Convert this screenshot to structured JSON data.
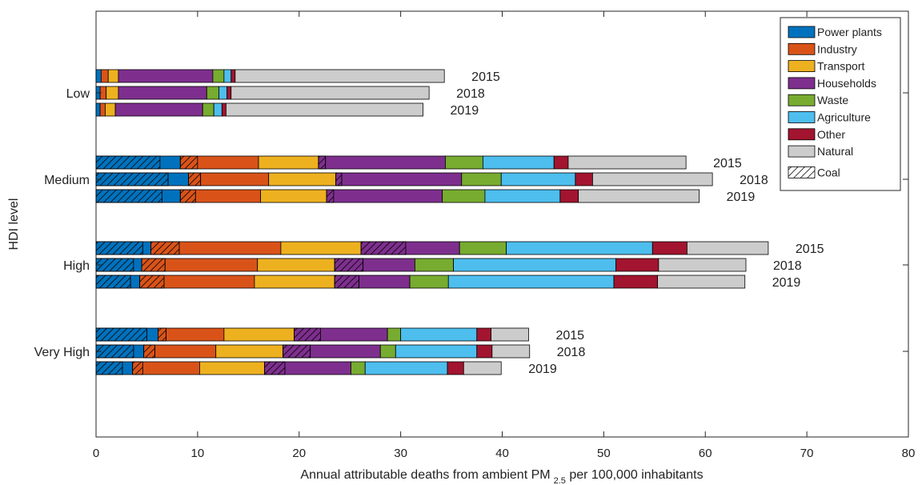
{
  "chart_data": {
    "type": "bar",
    "orientation": "horizontal",
    "stacked": true,
    "xlabel_main": "Annual attributable deaths from ambient PM",
    "xlabel_sub": "2.5",
    "xlabel_tail": " per 100,000 inhabitants",
    "ylabel": "HDI level",
    "xlim": [
      0,
      80
    ],
    "xticks": [
      "0",
      "10",
      "20",
      "30",
      "40",
      "50",
      "60",
      "70",
      "80"
    ],
    "grid": false,
    "legend_position": "top-right",
    "categories": [
      "Low",
      "Medium",
      "High",
      "Very High"
    ],
    "series": [
      {
        "name": "Power plants",
        "color": "#0072BD"
      },
      {
        "name": "Industry",
        "color": "#D95319"
      },
      {
        "name": "Transport",
        "color": "#EDB120"
      },
      {
        "name": "Households",
        "color": "#7E2F8E"
      },
      {
        "name": "Waste",
        "color": "#77AC30"
      },
      {
        "name": "Agriculture",
        "color": "#4DBEEE"
      },
      {
        "name": "Other",
        "color": "#A2142F"
      },
      {
        "name": "Natural",
        "color": "#CCCCCC"
      }
    ],
    "coal_label": "Coal",
    "groups": [
      {
        "category": "Low",
        "bars": [
          {
            "year": "2015",
            "segments": [
              {
                "s": 0,
                "v": 0.5,
                "coal": false
              },
              {
                "s": 1,
                "v": 0.7,
                "coal": false
              },
              {
                "s": 2,
                "v": 1.0,
                "coal": false
              },
              {
                "s": 3,
                "v": 9.3,
                "coal": false
              },
              {
                "s": 4,
                "v": 1.1,
                "coal": false
              },
              {
                "s": 5,
                "v": 0.7,
                "coal": false
              },
              {
                "s": 6,
                "v": 0.4,
                "coal": false
              },
              {
                "s": 7,
                "v": 20.6,
                "coal": false
              }
            ]
          },
          {
            "year": "2018",
            "segments": [
              {
                "s": 0,
                "v": 0.4,
                "coal": false
              },
              {
                "s": 1,
                "v": 0.6,
                "coal": false
              },
              {
                "s": 2,
                "v": 1.2,
                "coal": false
              },
              {
                "s": 3,
                "v": 8.7,
                "coal": false
              },
              {
                "s": 4,
                "v": 1.2,
                "coal": false
              },
              {
                "s": 5,
                "v": 0.8,
                "coal": false
              },
              {
                "s": 6,
                "v": 0.4,
                "coal": false
              },
              {
                "s": 7,
                "v": 19.5,
                "coal": false
              }
            ]
          },
          {
            "year": "2019",
            "segments": [
              {
                "s": 0,
                "v": 0.4,
                "coal": false
              },
              {
                "s": 1,
                "v": 0.5,
                "coal": false
              },
              {
                "s": 2,
                "v": 1.0,
                "coal": false
              },
              {
                "s": 3,
                "v": 8.6,
                "coal": false
              },
              {
                "s": 4,
                "v": 1.1,
                "coal": false
              },
              {
                "s": 5,
                "v": 0.8,
                "coal": false
              },
              {
                "s": 6,
                "v": 0.4,
                "coal": false
              },
              {
                "s": 7,
                "v": 19.4,
                "coal": false
              }
            ]
          }
        ]
      },
      {
        "category": "Medium",
        "bars": [
          {
            "year": "2015",
            "segments": [
              {
                "s": 0,
                "v": 6.3,
                "coal": true
              },
              {
                "s": 0,
                "v": 2.0,
                "coal": false
              },
              {
                "s": 1,
                "v": 1.7,
                "coal": true
              },
              {
                "s": 1,
                "v": 6.0,
                "coal": false
              },
              {
                "s": 2,
                "v": 5.9,
                "coal": false
              },
              {
                "s": 3,
                "v": 0.7,
                "coal": true
              },
              {
                "s": 3,
                "v": 11.8,
                "coal": false
              },
              {
                "s": 4,
                "v": 3.7,
                "coal": false
              },
              {
                "s": 5,
                "v": 7.0,
                "coal": false
              },
              {
                "s": 6,
                "v": 1.4,
                "coal": false
              },
              {
                "s": 7,
                "v": 11.6,
                "coal": false
              }
            ]
          },
          {
            "year": "2018",
            "segments": [
              {
                "s": 0,
                "v": 7.1,
                "coal": true
              },
              {
                "s": 0,
                "v": 2.0,
                "coal": false
              },
              {
                "s": 1,
                "v": 1.2,
                "coal": true
              },
              {
                "s": 1,
                "v": 6.7,
                "coal": false
              },
              {
                "s": 2,
                "v": 6.6,
                "coal": false
              },
              {
                "s": 3,
                "v": 0.6,
                "coal": true
              },
              {
                "s": 3,
                "v": 11.8,
                "coal": false
              },
              {
                "s": 4,
                "v": 3.9,
                "coal": false
              },
              {
                "s": 5,
                "v": 7.3,
                "coal": false
              },
              {
                "s": 6,
                "v": 1.7,
                "coal": false
              },
              {
                "s": 7,
                "v": 11.8,
                "coal": false
              }
            ]
          },
          {
            "year": "2019",
            "segments": [
              {
                "s": 0,
                "v": 6.5,
                "coal": true
              },
              {
                "s": 0,
                "v": 1.8,
                "coal": false
              },
              {
                "s": 1,
                "v": 1.5,
                "coal": true
              },
              {
                "s": 1,
                "v": 6.4,
                "coal": false
              },
              {
                "s": 2,
                "v": 6.5,
                "coal": false
              },
              {
                "s": 3,
                "v": 0.7,
                "coal": true
              },
              {
                "s": 3,
                "v": 10.7,
                "coal": false
              },
              {
                "s": 4,
                "v": 4.2,
                "coal": false
              },
              {
                "s": 5,
                "v": 7.4,
                "coal": false
              },
              {
                "s": 6,
                "v": 1.8,
                "coal": false
              },
              {
                "s": 7,
                "v": 11.9,
                "coal": false
              }
            ]
          }
        ]
      },
      {
        "category": "High",
        "bars": [
          {
            "year": "2015",
            "segments": [
              {
                "s": 0,
                "v": 4.6,
                "coal": true
              },
              {
                "s": 0,
                "v": 0.8,
                "coal": false
              },
              {
                "s": 1,
                "v": 2.8,
                "coal": true
              },
              {
                "s": 1,
                "v": 10.0,
                "coal": false
              },
              {
                "s": 2,
                "v": 7.9,
                "coal": false
              },
              {
                "s": 3,
                "v": 4.4,
                "coal": true
              },
              {
                "s": 3,
                "v": 5.3,
                "coal": false
              },
              {
                "s": 4,
                "v": 4.6,
                "coal": false
              },
              {
                "s": 5,
                "v": 14.4,
                "coal": false
              },
              {
                "s": 6,
                "v": 3.4,
                "coal": false
              },
              {
                "s": 7,
                "v": 8.0,
                "coal": false
              }
            ]
          },
          {
            "year": "2018",
            "segments": [
              {
                "s": 0,
                "v": 3.7,
                "coal": true
              },
              {
                "s": 0,
                "v": 0.8,
                "coal": false
              },
              {
                "s": 1,
                "v": 2.3,
                "coal": true
              },
              {
                "s": 1,
                "v": 9.1,
                "coal": false
              },
              {
                "s": 2,
                "v": 7.6,
                "coal": false
              },
              {
                "s": 3,
                "v": 2.8,
                "coal": true
              },
              {
                "s": 3,
                "v": 5.1,
                "coal": false
              },
              {
                "s": 4,
                "v": 3.8,
                "coal": false
              },
              {
                "s": 5,
                "v": 16.0,
                "coal": false
              },
              {
                "s": 6,
                "v": 4.2,
                "coal": false
              },
              {
                "s": 7,
                "v": 8.6,
                "coal": false
              }
            ]
          },
          {
            "year": "2019",
            "segments": [
              {
                "s": 0,
                "v": 3.4,
                "coal": true
              },
              {
                "s": 0,
                "v": 0.9,
                "coal": false
              },
              {
                "s": 1,
                "v": 2.4,
                "coal": true
              },
              {
                "s": 1,
                "v": 8.9,
                "coal": false
              },
              {
                "s": 2,
                "v": 7.9,
                "coal": false
              },
              {
                "s": 3,
                "v": 2.4,
                "coal": true
              },
              {
                "s": 3,
                "v": 5.0,
                "coal": false
              },
              {
                "s": 4,
                "v": 3.8,
                "coal": false
              },
              {
                "s": 5,
                "v": 16.3,
                "coal": false
              },
              {
                "s": 6,
                "v": 4.3,
                "coal": false
              },
              {
                "s": 7,
                "v": 8.6,
                "coal": false
              }
            ]
          }
        ]
      },
      {
        "category": "Very High",
        "bars": [
          {
            "year": "2015",
            "segments": [
              {
                "s": 0,
                "v": 5.0,
                "coal": true
              },
              {
                "s": 0,
                "v": 1.1,
                "coal": false
              },
              {
                "s": 1,
                "v": 0.8,
                "coal": true
              },
              {
                "s": 1,
                "v": 5.7,
                "coal": false
              },
              {
                "s": 2,
                "v": 6.9,
                "coal": false
              },
              {
                "s": 3,
                "v": 2.6,
                "coal": true
              },
              {
                "s": 3,
                "v": 6.6,
                "coal": false
              },
              {
                "s": 4,
                "v": 1.3,
                "coal": false
              },
              {
                "s": 5,
                "v": 7.5,
                "coal": false
              },
              {
                "s": 6,
                "v": 1.4,
                "coal": false
              },
              {
                "s": 7,
                "v": 3.7,
                "coal": false
              }
            ]
          },
          {
            "year": "2018",
            "segments": [
              {
                "s": 0,
                "v": 3.7,
                "coal": true
              },
              {
                "s": 0,
                "v": 1.0,
                "coal": false
              },
              {
                "s": 1,
                "v": 1.1,
                "coal": true
              },
              {
                "s": 1,
                "v": 6.0,
                "coal": false
              },
              {
                "s": 2,
                "v": 6.6,
                "coal": false
              },
              {
                "s": 3,
                "v": 2.7,
                "coal": true
              },
              {
                "s": 3,
                "v": 6.9,
                "coal": false
              },
              {
                "s": 4,
                "v": 1.5,
                "coal": false
              },
              {
                "s": 5,
                "v": 8.0,
                "coal": false
              },
              {
                "s": 6,
                "v": 1.5,
                "coal": false
              },
              {
                "s": 7,
                "v": 3.7,
                "coal": false
              }
            ]
          },
          {
            "year": "2019",
            "segments": [
              {
                "s": 0,
                "v": 2.6,
                "coal": true
              },
              {
                "s": 0,
                "v": 1.0,
                "coal": false
              },
              {
                "s": 1,
                "v": 1.0,
                "coal": true
              },
              {
                "s": 1,
                "v": 5.6,
                "coal": false
              },
              {
                "s": 2,
                "v": 6.4,
                "coal": false
              },
              {
                "s": 3,
                "v": 2.0,
                "coal": true
              },
              {
                "s": 3,
                "v": 6.5,
                "coal": false
              },
              {
                "s": 4,
                "v": 1.4,
                "coal": false
              },
              {
                "s": 5,
                "v": 8.1,
                "coal": false
              },
              {
                "s": 6,
                "v": 1.6,
                "coal": false
              },
              {
                "s": 7,
                "v": 3.7,
                "coal": false
              }
            ]
          }
        ]
      }
    ]
  }
}
